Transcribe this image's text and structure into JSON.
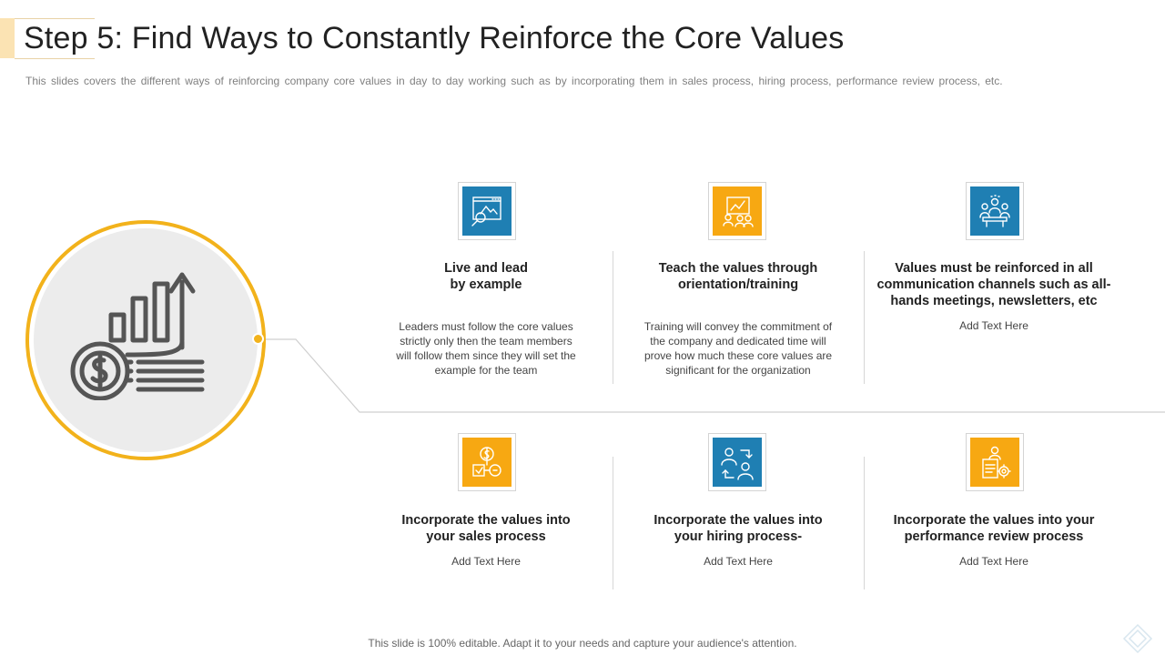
{
  "page": {
    "title": "Step 5: Find Ways to Constantly Reinforce the Core Values",
    "subtitle": "This slides covers the different  ways of reinforcing  company core values  in day to day working such as by incorporating  them in sales process, hiring process, performance  review  process, etc.",
    "footer": "This slide is 100% editable. Adapt it to your needs and capture your audience's attention."
  },
  "colors": {
    "accent_orange": "#f7a812",
    "accent_blue": "#1f7fb3",
    "ring": "#f2b21b"
  },
  "hub": {
    "icon": "money-growth-chart-icon"
  },
  "items": [
    {
      "icon": "presentation-magnifier-icon",
      "heading": "Live and lead\nby example",
      "text": "Leaders must follow the core values\nstrictly only then the team members\nwill follow them since they will set the\nexample for the team"
    },
    {
      "icon": "training-board-icon",
      "heading": "Teach the values through\norientation/training",
      "text": "Training  will convey  the commitment  of\nthe company and dedicated time will\nprove  how  much  these core values  are\nsignificant for the organization"
    },
    {
      "icon": "team-meeting-icon",
      "heading": "Values must be reinforced in all\ncommunication  channels such as all-\nhands meetings, newsletters, etc",
      "text": "Add Text Here"
    },
    {
      "icon": "dollar-sales-process-icon",
      "heading": "Incorporate the values into\nyour sales process",
      "text": "Add Text Here"
    },
    {
      "icon": "hiring-people-icon",
      "heading": "Incorporate the values into\nyour hiring process-",
      "text": "Add Text Here"
    },
    {
      "icon": "performance-review-icon",
      "heading": "Incorporate the values into your\nperformance review process",
      "text": "Add Text Here"
    }
  ]
}
